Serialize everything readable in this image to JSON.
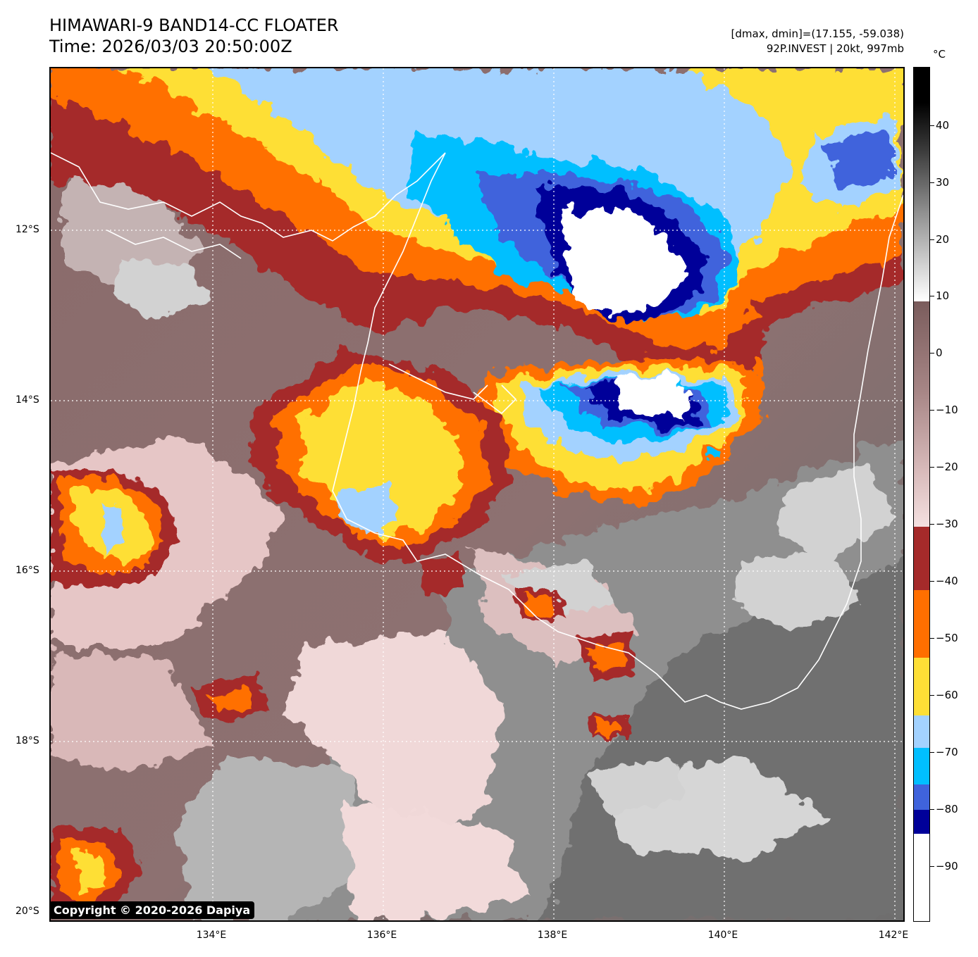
{
  "header": {
    "title_line1": "HIMAWARI-9 BAND14-CC FLOATER",
    "title_line2": "Time: 2026/03/03 20:50:00Z",
    "info_line1": "[dmax, dmin]=(17.155, -59.038)",
    "info_line2": "92P.INVEST | 20kt, 997mb"
  },
  "axes": {
    "lat_labels": [
      "12°S",
      "14°S",
      "16°S",
      "18°S",
      "20°S"
    ],
    "lon_labels": [
      "134°E",
      "136°E",
      "138°E",
      "140°E",
      "142°E"
    ]
  },
  "colorbar": {
    "unit": "°C",
    "tick_labels": [
      "40",
      "30",
      "20",
      "10",
      "0",
      "−10",
      "−20",
      "−30",
      "−40",
      "−50",
      "−60",
      "−70",
      "−80",
      "−90"
    ],
    "colors": {
      "white": "#ffffff",
      "dark_blue": "#000099",
      "royal_blue": "#3f63dc",
      "deep_sky": "#00bfff",
      "light_blue": "#a3d2ff",
      "yellow": "#fedf36",
      "orange": "#ff6f00",
      "dark_red": "#a52a2a",
      "brown": "#7a5c5c",
      "pink": "#f0d8d8",
      "gray": "#8a8a8a"
    }
  },
  "map": {
    "coastline_color": "#ffffff",
    "gridline_color": "#ffffff"
  },
  "footer": {
    "copyright": "Copyright © 2020-2026 Dapiya"
  }
}
